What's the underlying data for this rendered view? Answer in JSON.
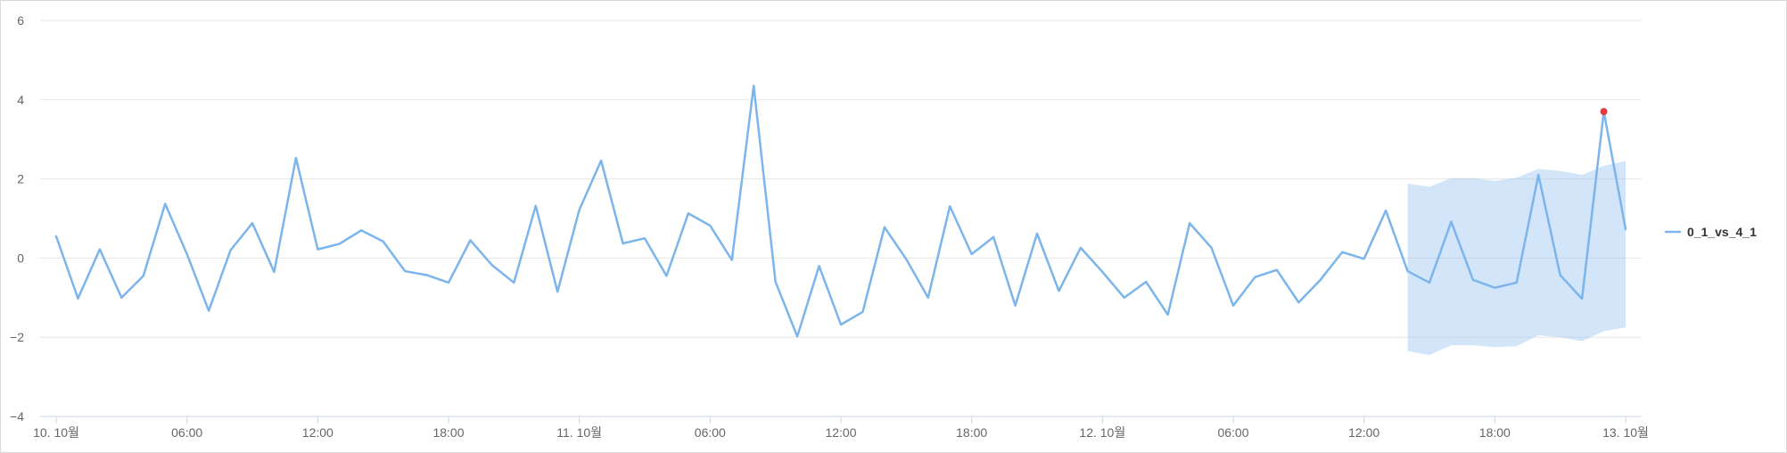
{
  "chart_data": {
    "type": "line",
    "title": "",
    "xlabel": "",
    "ylabel": "",
    "ylim": [
      -4,
      6
    ],
    "y_ticks": [
      "−4",
      "−2",
      "0",
      "2",
      "4",
      "6"
    ],
    "y_tick_values": [
      -4,
      -2,
      0,
      2,
      4,
      6
    ],
    "x_tick_labels": [
      "10. 10월",
      "06:00",
      "12:00",
      "18:00",
      "11. 10월",
      "06:00",
      "12:00",
      "18:00",
      "12. 10월",
      "06:00",
      "12:00",
      "18:00",
      "13. 10월"
    ],
    "x_tick_hours": [
      0,
      6,
      12,
      18,
      24,
      30,
      36,
      42,
      48,
      54,
      60,
      66,
      72
    ],
    "x_range_hours": [
      0,
      72
    ],
    "x_unit": "hours since 10. 10월 00:00",
    "grid": true,
    "legend_position": "right",
    "series": [
      {
        "name": "0_1_vs_4_1",
        "color": "#7cb5ec",
        "x": [
          0,
          1,
          2,
          3,
          4,
          5,
          6,
          7,
          8,
          9,
          10,
          11,
          12,
          13,
          14,
          15,
          16,
          17,
          18,
          19,
          20,
          21,
          22,
          23,
          24,
          25,
          26,
          27,
          28,
          29,
          30,
          31,
          32,
          33,
          34,
          35,
          36,
          37,
          38,
          39,
          40,
          41,
          42,
          43,
          44,
          45,
          46,
          47,
          48,
          49,
          50,
          51,
          52,
          53,
          54,
          55,
          56,
          57,
          58,
          59,
          60,
          61,
          62,
          63,
          64,
          65,
          66,
          67,
          68,
          69,
          70,
          71,
          72
        ],
        "values": [
          0.55,
          -1.02,
          0.22,
          -1.0,
          -0.45,
          1.37,
          0.1,
          -1.33,
          0.2,
          0.88,
          -0.35,
          2.53,
          0.22,
          0.36,
          0.7,
          0.42,
          -0.33,
          -0.43,
          -0.62,
          0.45,
          -0.18,
          -0.62,
          1.32,
          -0.85,
          1.22,
          2.46,
          0.37,
          0.5,
          -0.45,
          1.13,
          0.82,
          -0.05,
          4.35,
          -0.6,
          -1.98,
          -0.2,
          -1.68,
          -1.36,
          0.78,
          -0.03,
          -1.0,
          1.31,
          0.1,
          0.53,
          -1.2,
          0.62,
          -0.83,
          0.26,
          -0.35,
          -1.0,
          -0.6,
          -1.43,
          0.88,
          0.26,
          -1.2,
          -0.48,
          -0.3,
          -1.12,
          -0.55,
          0.15,
          -0.02,
          1.2,
          -0.33,
          -0.62,
          0.92,
          -0.55,
          -0.75,
          -0.62,
          2.1,
          -0.43,
          -1.03,
          3.7,
          0.73
        ]
      }
    ],
    "band": {
      "color": "#90bfee",
      "x": [
        62,
        63,
        64,
        65,
        66,
        67,
        68,
        69,
        70,
        71,
        72
      ],
      "upper": [
        1.88,
        1.8,
        2.02,
        2.02,
        1.95,
        2.03,
        2.25,
        2.2,
        2.1,
        2.33,
        2.45
      ],
      "lower": [
        -2.35,
        -2.45,
        -2.2,
        -2.2,
        -2.25,
        -2.23,
        -1.95,
        -2.0,
        -2.1,
        -1.85,
        -1.75
      ]
    },
    "anomaly": {
      "x": 71,
      "value": 3.7,
      "color": "#e8383d"
    }
  }
}
